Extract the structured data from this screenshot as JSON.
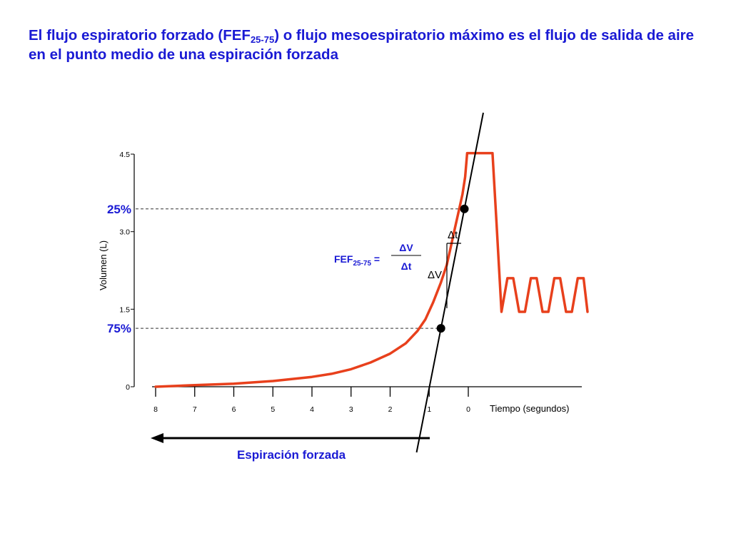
{
  "title": {
    "part1": "El flujo espiratorio forzado (FEF",
    "subscript": "25-75",
    "part2": ") o flujo mesoespiratorio máximo es el flujo de salida de aire en el punto medio de una espiración forzada"
  },
  "colors": {
    "title": "#1a1ad4",
    "curve": "#e8401c",
    "marker_label": "#1a1ad4",
    "axis": "#000000"
  },
  "chart_data": {
    "type": "line",
    "xlabel": "Tiempo (segundos)",
    "ylabel": "Volumen (L)",
    "x_ticks": [
      "8",
      "7",
      "6",
      "5",
      "4",
      "3",
      "2",
      "1",
      "0"
    ],
    "y_ticks": [
      "0",
      "1.5",
      "3.0",
      "4.5"
    ],
    "xlim": [
      8,
      -3
    ],
    "ylim": [
      0,
      4.5
    ],
    "x_reversed": true,
    "series": [
      {
        "type": "line",
        "x": [
          8.0,
          7.0,
          6.0,
          5.0,
          4.0,
          3.5,
          3.0,
          2.5,
          2.0,
          1.6,
          1.3,
          1.1,
          0.9,
          0.7,
          0.55,
          0.45,
          0.35,
          0.25,
          0.15,
          0.08,
          0.03,
          -0.6,
          -0.6
        ],
        "y": [
          0.0,
          0.03,
          0.06,
          0.11,
          0.19,
          0.25,
          0.34,
          0.47,
          0.64,
          0.84,
          1.08,
          1.3,
          1.63,
          2.02,
          2.36,
          2.7,
          3.04,
          3.38,
          3.72,
          4.06,
          4.52,
          4.52,
          4.52
        ]
      },
      {
        "type": "line",
        "x": [
          -0.62,
          -0.72,
          -0.85,
          -1.0,
          -1.15,
          -1.3,
          -1.45,
          -1.6,
          -1.75,
          -1.9,
          -2.05,
          -2.2,
          -2.35,
          -2.5,
          -2.65,
          -2.8,
          -2.95,
          -3.05
        ],
        "y": [
          4.52,
          3.2,
          1.45,
          2.1,
          2.1,
          1.45,
          1.45,
          2.1,
          2.1,
          1.45,
          1.45,
          2.1,
          2.1,
          1.45,
          1.45,
          2.1,
          2.1,
          1.45
        ]
      }
    ],
    "markers": [
      {
        "label": "25%",
        "x": 0.1,
        "y": 3.44
      },
      {
        "label": "75%",
        "x": 0.7,
        "y": 1.13
      }
    ],
    "annotations": {
      "formula_prefix": "FEF",
      "formula_subscript": "25-75",
      "formula_equals": " =",
      "numerator": "ΔV",
      "denominator": "Δt",
      "delta_t": "Δt",
      "delta_v": "ΔV",
      "arrow_label": "Espiración forzada"
    }
  }
}
